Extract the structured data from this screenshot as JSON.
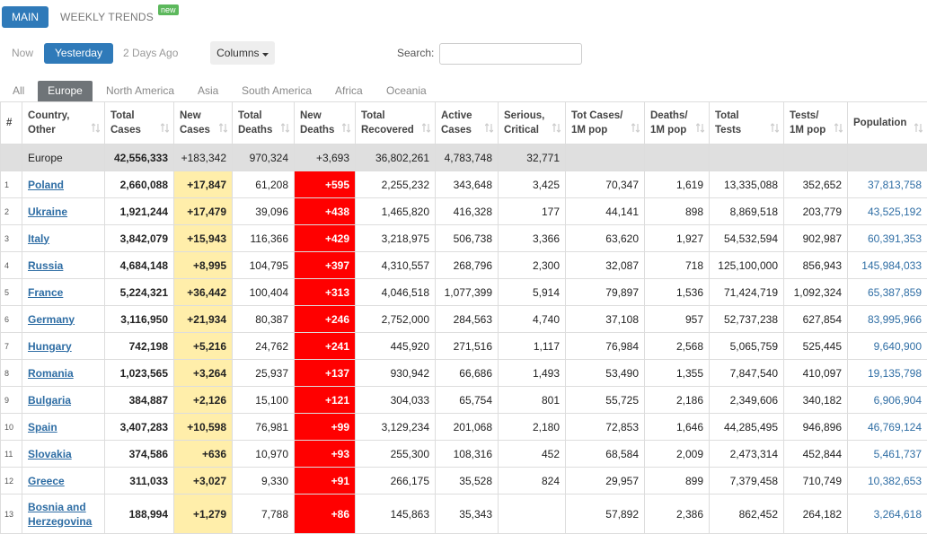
{
  "tabs": [
    "MAIN",
    "WEEKLY TRENDS"
  ],
  "badge": "new",
  "day_tabs": [
    "Now",
    "Yesterday",
    "2 Days Ago"
  ],
  "columns_button": "Columns",
  "search_label": "Search:",
  "region_tabs": [
    "All",
    "Europe",
    "North America",
    "Asia",
    "South America",
    "Africa",
    "Oceania"
  ],
  "table": {
    "headers": [
      [
        "#"
      ],
      [
        "Country,",
        "Other"
      ],
      [
        "Total",
        "Cases"
      ],
      [
        "New",
        "Cases"
      ],
      [
        "Total",
        "Deaths"
      ],
      [
        "New",
        "Deaths"
      ],
      [
        "Total",
        "Recovered"
      ],
      [
        "Active",
        "Cases"
      ],
      [
        "Serious,",
        "Critical"
      ],
      [
        "Tot Cases/",
        "1M pop"
      ],
      [
        "Deaths/",
        "1M pop"
      ],
      [
        "Total",
        "Tests"
      ],
      [
        "Tests/",
        "1M pop"
      ],
      [
        "Population"
      ]
    ],
    "total_row": [
      null,
      "Europe",
      "42,556,333",
      "+183,342",
      "970,324",
      "+3,693",
      "36,802,261",
      "4,783,748",
      "32,771",
      null,
      null,
      null,
      null,
      null
    ],
    "rows": [
      [
        "1",
        "Poland",
        "2,660,088",
        "+17,847",
        "61,208",
        "+595",
        "2,255,232",
        "343,648",
        "3,425",
        "70,347",
        "1,619",
        "13,335,088",
        "352,652",
        "37,813,758"
      ],
      [
        "2",
        "Ukraine",
        "1,921,244",
        "+17,479",
        "39,096",
        "+438",
        "1,465,820",
        "416,328",
        "177",
        "44,141",
        "898",
        "8,869,518",
        "203,779",
        "43,525,192"
      ],
      [
        "3",
        "Italy",
        "3,842,079",
        "+15,943",
        "116,366",
        "+429",
        "3,218,975",
        "506,738",
        "3,366",
        "63,620",
        "1,927",
        "54,532,594",
        "902,987",
        "60,391,353"
      ],
      [
        "4",
        "Russia",
        "4,684,148",
        "+8,995",
        "104,795",
        "+397",
        "4,310,557",
        "268,796",
        "2,300",
        "32,087",
        "718",
        "125,100,000",
        "856,943",
        "145,984,033"
      ],
      [
        "5",
        "France",
        "5,224,321",
        "+36,442",
        "100,404",
        "+313",
        "4,046,518",
        "1,077,399",
        "5,914",
        "79,897",
        "1,536",
        "71,424,719",
        "1,092,324",
        "65,387,859"
      ],
      [
        "6",
        "Germany",
        "3,116,950",
        "+21,934",
        "80,387",
        "+246",
        "2,752,000",
        "284,563",
        "4,740",
        "37,108",
        "957",
        "52,737,238",
        "627,854",
        "83,995,966"
      ],
      [
        "7",
        "Hungary",
        "742,198",
        "+5,216",
        "24,762",
        "+241",
        "445,920",
        "271,516",
        "1,117",
        "76,984",
        "2,568",
        "5,065,759",
        "525,445",
        "9,640,900"
      ],
      [
        "8",
        "Romania",
        "1,023,565",
        "+3,264",
        "25,937",
        "+137",
        "930,942",
        "66,686",
        "1,493",
        "53,490",
        "1,355",
        "7,847,540",
        "410,097",
        "19,135,798"
      ],
      [
        "9",
        "Bulgaria",
        "384,887",
        "+2,126",
        "15,100",
        "+121",
        "304,033",
        "65,754",
        "801",
        "55,725",
        "2,186",
        "2,349,606",
        "340,182",
        "6,906,904"
      ],
      [
        "10",
        "Spain",
        "3,407,283",
        "+10,598",
        "76,981",
        "+99",
        "3,129,234",
        "201,068",
        "2,180",
        "72,853",
        "1,646",
        "44,285,495",
        "946,896",
        "46,769,124"
      ],
      [
        "11",
        "Slovakia",
        "374,586",
        "+636",
        "10,970",
        "+93",
        "255,300",
        "108,316",
        "452",
        "68,584",
        "2,009",
        "2,473,314",
        "452,844",
        "5,461,737"
      ],
      [
        "12",
        "Greece",
        "311,033",
        "+3,027",
        "9,330",
        "+91",
        "266,175",
        "35,528",
        "824",
        "29,957",
        "899",
        "7,379,458",
        "710,749",
        "10,382,653"
      ],
      [
        "13",
        "Bosnia and Herzegovina",
        "188,994",
        "+1,279",
        "7,788",
        "+86",
        "145,863",
        "35,343",
        null,
        "57,892",
        "2,386",
        "862,452",
        "264,182",
        "3,264,618"
      ]
    ]
  }
}
